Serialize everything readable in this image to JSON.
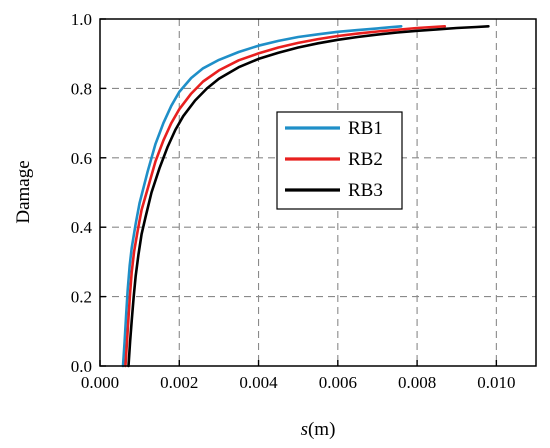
{
  "chart_data": {
    "type": "line",
    "xlabel_italic": "s",
    "xlabel_unit": "(m)",
    "ylabel": "Damage",
    "xlim": [
      0,
      0.011
    ],
    "ylim": [
      0,
      1.0
    ],
    "x_ticks": [
      0.0,
      0.002,
      0.004,
      0.006,
      0.008,
      0.01
    ],
    "x_tick_labels": [
      "0.000",
      "0.002",
      "0.004",
      "0.006",
      "0.008",
      "0.010"
    ],
    "y_ticks": [
      0.0,
      0.2,
      0.4,
      0.6,
      0.8,
      1.0
    ],
    "y_tick_labels": [
      "0.0",
      "0.2",
      "0.4",
      "0.6",
      "0.8",
      "1.0"
    ],
    "grid": true,
    "legend_position": "center-right",
    "series": [
      {
        "name": "RB1",
        "color": "#1f8fc8",
        "x": [
          0.00058,
          0.00062,
          0.00066,
          0.0007,
          0.00075,
          0.0008,
          0.0009,
          0.001,
          0.0012,
          0.0014,
          0.0016,
          0.0018,
          0.002,
          0.0023,
          0.0026,
          0.003,
          0.0035,
          0.004,
          0.0045,
          0.005,
          0.0055,
          0.006,
          0.0065,
          0.007,
          0.0073,
          0.0076
        ],
        "y": [
          0.0,
          0.07,
          0.15,
          0.22,
          0.29,
          0.34,
          0.41,
          0.47,
          0.56,
          0.64,
          0.7,
          0.75,
          0.79,
          0.83,
          0.858,
          0.882,
          0.905,
          0.923,
          0.937,
          0.948,
          0.956,
          0.963,
          0.968,
          0.973,
          0.976,
          0.979
        ]
      },
      {
        "name": "RB2",
        "color": "#e8201f",
        "x": [
          0.00064,
          0.00068,
          0.00072,
          0.00076,
          0.0008,
          0.00086,
          0.00095,
          0.00105,
          0.0012,
          0.0014,
          0.0016,
          0.0018,
          0.002,
          0.0023,
          0.0026,
          0.003,
          0.0035,
          0.004,
          0.0045,
          0.005,
          0.0055,
          0.006,
          0.0065,
          0.007,
          0.0075,
          0.008,
          0.0084,
          0.0087
        ],
        "y": [
          0.0,
          0.07,
          0.14,
          0.21,
          0.27,
          0.33,
          0.39,
          0.45,
          0.51,
          0.59,
          0.65,
          0.7,
          0.74,
          0.785,
          0.82,
          0.852,
          0.881,
          0.901,
          0.918,
          0.931,
          0.942,
          0.951,
          0.958,
          0.964,
          0.969,
          0.974,
          0.977,
          0.979
        ]
      },
      {
        "name": "RB3",
        "color": "#000000",
        "x": [
          0.00072,
          0.00076,
          0.0008,
          0.00085,
          0.0009,
          0.00097,
          0.00105,
          0.00115,
          0.0013,
          0.0015,
          0.0017,
          0.0019,
          0.0021,
          0.0024,
          0.0027,
          0.003,
          0.0035,
          0.004,
          0.0045,
          0.005,
          0.0055,
          0.006,
          0.0065,
          0.007,
          0.0075,
          0.008,
          0.0085,
          0.009,
          0.0095,
          0.0098
        ],
        "y": [
          0.0,
          0.07,
          0.13,
          0.2,
          0.26,
          0.32,
          0.38,
          0.43,
          0.5,
          0.57,
          0.63,
          0.68,
          0.72,
          0.765,
          0.8,
          0.828,
          0.861,
          0.885,
          0.903,
          0.918,
          0.93,
          0.94,
          0.948,
          0.955,
          0.961,
          0.966,
          0.97,
          0.974,
          0.977,
          0.979
        ]
      }
    ]
  }
}
